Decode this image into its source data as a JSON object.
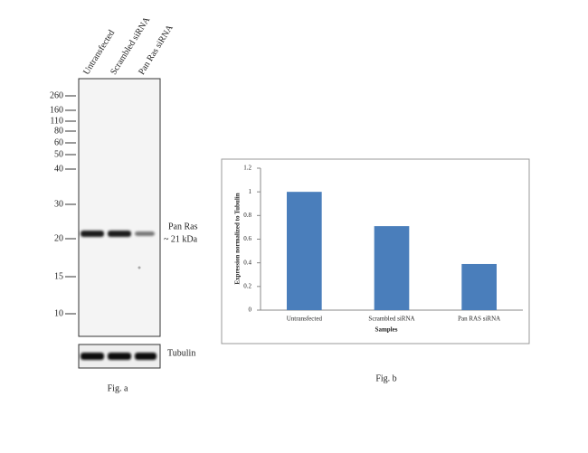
{
  "blot": {
    "lanes": [
      "Untransfected",
      "Scrambled siRNA",
      "Pan Ras siRNA"
    ],
    "markers": [
      260,
      160,
      110,
      80,
      60,
      50,
      40,
      30,
      20,
      15,
      10
    ],
    "band_label": "Pan Ras",
    "band_size": "~ 21 kDa",
    "loading_control": "Tubulin",
    "caption": "Fig. a"
  },
  "chart_data": {
    "type": "bar",
    "caption": "Fig. b",
    "y_label": "Expression normalized to Tubulin",
    "x_label": "Samples",
    "categories": [
      "Untransfected",
      "Scrambled siRNA",
      "Pan RAS siRNA"
    ],
    "values": [
      1,
      0.71,
      0.39
    ],
    "color": "#4a7ebb",
    "ylim": [
      0,
      1.2
    ],
    "yticks": [
      0,
      0.2,
      0.4,
      0.6,
      0.8,
      1,
      1.2
    ]
  }
}
